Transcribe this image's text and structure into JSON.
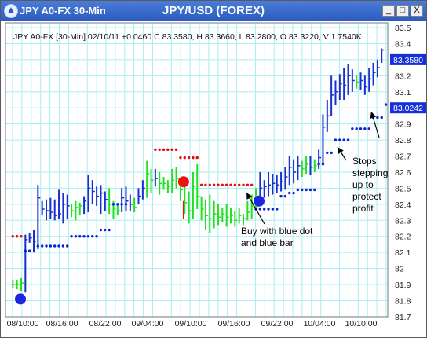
{
  "window": {
    "title": "JPY A0-FX 30-Min",
    "buttons": [
      "_",
      "□",
      "X"
    ]
  },
  "chart_data": {
    "type": "bar",
    "title": "JPY/USD (FOREX)",
    "info_line": "JPY A0-FX [30-Min] 02/10/11 +0.0460 C 83.3580, H 83.3660, L 83.2800, O 83.3220, V 1.7540K",
    "price_axis": [
      "83.5",
      "83.4",
      "83.3",
      "83.2",
      "83.1",
      "83",
      "82.9",
      "82.8",
      "82.7",
      "82.6",
      "82.5",
      "82.4",
      "82.3",
      "82.2",
      "82.1",
      "82",
      "81.9",
      "81.8",
      "81.7"
    ],
    "ylim": [
      81.7,
      83.5
    ],
    "x_labels": [
      "08/10:00",
      "08/16:00",
      "08/22:00",
      "09/04:00",
      "09/10:00",
      "09/16:00",
      "09/22:00",
      "10/04:00",
      "10/10:00"
    ],
    "last_price": "83.3580",
    "stop_price": "83.0242",
    "grid": true,
    "colors": {
      "up_bar": "#1a2fcf",
      "neutral_bar": "#22e022",
      "stop_dot": "#0b25d6",
      "sell_stop_dot": "#e01010",
      "signal_red": "#ee1111",
      "signal_blue": "#1a26e0",
      "grid": "#a8eef2"
    },
    "bars": [
      [
        81.88,
        81.93,
        81.9,
        "g"
      ],
      [
        81.87,
        81.93,
        81.9,
        "g"
      ],
      [
        81.86,
        81.94,
        81.91,
        "g"
      ],
      [
        81.85,
        82.21,
        82.18,
        "b"
      ],
      [
        82.16,
        82.22,
        82.19,
        "b"
      ],
      [
        82.1,
        82.24,
        82.17,
        "b"
      ],
      [
        82.12,
        82.52,
        82.44,
        "b"
      ],
      [
        82.33,
        82.42,
        82.37,
        "b"
      ],
      [
        82.3,
        82.43,
        82.36,
        "b"
      ],
      [
        82.31,
        82.44,
        82.35,
        "b"
      ],
      [
        82.3,
        82.43,
        82.33,
        "b"
      ],
      [
        82.31,
        82.49,
        82.34,
        "b"
      ],
      [
        82.28,
        82.47,
        82.4,
        "b"
      ],
      [
        82.31,
        82.46,
        82.39,
        "b"
      ],
      [
        82.32,
        82.4,
        82.36,
        "g"
      ],
      [
        82.3,
        82.42,
        82.38,
        "g"
      ],
      [
        82.33,
        82.41,
        82.39,
        "g"
      ],
      [
        82.34,
        82.45,
        82.42,
        "b"
      ],
      [
        82.35,
        82.58,
        82.5,
        "b"
      ],
      [
        82.4,
        82.55,
        82.48,
        "b"
      ],
      [
        82.39,
        82.51,
        82.45,
        "b"
      ],
      [
        82.34,
        82.52,
        82.47,
        "b"
      ],
      [
        82.36,
        82.48,
        82.43,
        "b"
      ],
      [
        82.34,
        82.5,
        82.4,
        "g"
      ],
      [
        82.31,
        82.42,
        82.37,
        "g"
      ],
      [
        82.33,
        82.4,
        82.36,
        "g"
      ],
      [
        82.35,
        82.5,
        82.44,
        "b"
      ],
      [
        82.36,
        82.51,
        82.42,
        "b"
      ],
      [
        82.36,
        82.46,
        82.4,
        "b"
      ],
      [
        82.35,
        82.44,
        82.38,
        "g"
      ],
      [
        82.4,
        82.5,
        82.45,
        "b"
      ],
      [
        82.43,
        82.55,
        82.5,
        "b"
      ],
      [
        82.44,
        82.67,
        82.59,
        "g"
      ],
      [
        82.47,
        82.62,
        82.55,
        "g"
      ],
      [
        82.51,
        82.62,
        82.56,
        "b"
      ],
      [
        82.46,
        82.6,
        82.53,
        "g"
      ],
      [
        82.49,
        82.57,
        82.53,
        "g"
      ],
      [
        82.47,
        82.55,
        82.51,
        "g"
      ],
      [
        82.47,
        82.62,
        82.55,
        "g"
      ],
      [
        82.5,
        82.63,
        82.56,
        "g"
      ],
      [
        82.42,
        82.56,
        82.49,
        "g"
      ],
      [
        82.34,
        82.52,
        82.41,
        "g"
      ],
      [
        82.28,
        82.48,
        82.36,
        "g"
      ],
      [
        82.31,
        82.6,
        82.51,
        "g"
      ],
      [
        82.37,
        82.65,
        82.45,
        "g"
      ],
      [
        82.3,
        82.45,
        82.37,
        "g"
      ],
      [
        82.24,
        82.43,
        82.33,
        "g"
      ],
      [
        82.22,
        82.46,
        82.31,
        "g"
      ],
      [
        82.25,
        82.42,
        82.34,
        "g"
      ],
      [
        82.27,
        82.4,
        82.32,
        "g"
      ],
      [
        82.29,
        82.38,
        82.34,
        "g"
      ],
      [
        82.26,
        82.4,
        82.32,
        "g"
      ],
      [
        82.28,
        82.38,
        82.33,
        "g"
      ],
      [
        82.26,
        82.36,
        82.3,
        "g"
      ],
      [
        82.28,
        82.38,
        82.33,
        "g"
      ],
      [
        82.27,
        82.34,
        82.31,
        "g"
      ],
      [
        82.3,
        82.42,
        82.35,
        "g"
      ],
      [
        82.31,
        82.46,
        82.39,
        "g"
      ],
      [
        82.36,
        82.5,
        82.44,
        "g"
      ],
      [
        82.42,
        82.6,
        82.5,
        "b"
      ],
      [
        82.44,
        82.55,
        82.51,
        "b"
      ],
      [
        82.45,
        82.6,
        82.52,
        "b"
      ],
      [
        82.46,
        82.59,
        82.53,
        "b"
      ],
      [
        82.47,
        82.58,
        82.52,
        "b"
      ],
      [
        82.48,
        82.6,
        82.54,
        "b"
      ],
      [
        82.49,
        82.63,
        82.57,
        "b"
      ],
      [
        82.52,
        82.7,
        82.63,
        "b"
      ],
      [
        82.53,
        82.68,
        82.6,
        "b"
      ],
      [
        82.55,
        82.7,
        82.64,
        "b"
      ],
      [
        82.57,
        82.67,
        82.62,
        "g"
      ],
      [
        82.59,
        82.7,
        82.65,
        "g"
      ],
      [
        82.58,
        82.7,
        82.63,
        "b"
      ],
      [
        82.6,
        82.68,
        82.64,
        "g"
      ],
      [
        82.62,
        82.74,
        82.69,
        "b"
      ],
      [
        82.65,
        82.96,
        82.88,
        "b"
      ],
      [
        82.85,
        83.05,
        82.95,
        "b"
      ],
      [
        82.95,
        83.2,
        83.08,
        "b"
      ],
      [
        83.02,
        83.17,
        83.1,
        "b"
      ],
      [
        83.05,
        83.21,
        83.15,
        "b"
      ],
      [
        83.05,
        83.25,
        83.14,
        "b"
      ],
      [
        83.08,
        83.27,
        83.2,
        "b"
      ],
      [
        83.1,
        83.24,
        83.17,
        "b"
      ],
      [
        83.12,
        83.2,
        83.16,
        "g"
      ],
      [
        83.11,
        83.22,
        83.17,
        "b"
      ],
      [
        83.08,
        83.2,
        83.13,
        "b"
      ],
      [
        83.1,
        83.25,
        83.18,
        "b"
      ],
      [
        83.14,
        83.28,
        83.22,
        "b"
      ],
      [
        83.19,
        83.3,
        83.25,
        "b"
      ],
      [
        83.28,
        83.37,
        83.36,
        "b"
      ]
    ],
    "blue_stops": [
      [
        3,
        82.11
      ],
      [
        4,
        82.11
      ],
      [
        6,
        82.14
      ],
      [
        7,
        82.14
      ],
      [
        8,
        82.14
      ],
      [
        9,
        82.14
      ],
      [
        10,
        82.14
      ],
      [
        11,
        82.14
      ],
      [
        12,
        82.14
      ],
      [
        13,
        82.14
      ],
      [
        14,
        82.2
      ],
      [
        15,
        82.2
      ],
      [
        16,
        82.2
      ],
      [
        17,
        82.2
      ],
      [
        18,
        82.2
      ],
      [
        19,
        82.2
      ],
      [
        20,
        82.2
      ],
      [
        21,
        82.24
      ],
      [
        22,
        82.24
      ],
      [
        23,
        82.24
      ],
      [
        24,
        82.4
      ],
      [
        25,
        82.4
      ],
      [
        26,
        82.4
      ],
      [
        27,
        82.4
      ],
      [
        58,
        82.37
      ],
      [
        59,
        82.37
      ],
      [
        60,
        82.37
      ],
      [
        61,
        82.37
      ],
      [
        62,
        82.37
      ],
      [
        63,
        82.37
      ],
      [
        64,
        82.45
      ],
      [
        65,
        82.45
      ],
      [
        66,
        82.47
      ],
      [
        67,
        82.47
      ],
      [
        68,
        82.49
      ],
      [
        69,
        82.49
      ],
      [
        70,
        82.49
      ],
      [
        71,
        82.49
      ],
      [
        72,
        82.49
      ],
      [
        73,
        82.65
      ],
      [
        74,
        82.65
      ],
      [
        75,
        82.72
      ],
      [
        76,
        82.72
      ],
      [
        77,
        82.8
      ],
      [
        78,
        82.8
      ],
      [
        79,
        82.8
      ],
      [
        80,
        82.8
      ],
      [
        81,
        82.87
      ],
      [
        82,
        82.87
      ],
      [
        83,
        82.87
      ],
      [
        84,
        82.87
      ],
      [
        85,
        82.87
      ],
      [
        86,
        82.94
      ],
      [
        87,
        82.94
      ],
      [
        88,
        82.94
      ],
      [
        89,
        83.02
      ]
    ],
    "red_stops": [
      [
        0,
        82.2
      ],
      [
        1,
        82.2
      ],
      [
        2,
        82.2
      ],
      [
        34,
        82.74
      ],
      [
        35,
        82.74
      ],
      [
        36,
        82.74
      ],
      [
        37,
        82.74
      ],
      [
        38,
        82.74
      ],
      [
        39,
        82.74
      ],
      [
        40,
        82.69
      ],
      [
        41,
        82.69
      ],
      [
        42,
        82.69
      ],
      [
        43,
        82.69
      ],
      [
        44,
        82.69
      ],
      [
        45,
        82.52
      ],
      [
        46,
        82.52
      ],
      [
        47,
        82.52
      ],
      [
        48,
        82.52
      ],
      [
        49,
        82.52
      ],
      [
        50,
        82.52
      ],
      [
        51,
        82.52
      ],
      [
        52,
        82.52
      ],
      [
        53,
        82.52
      ],
      [
        54,
        82.52
      ],
      [
        55,
        82.52
      ],
      [
        56,
        82.52
      ],
      [
        57,
        82.52
      ]
    ],
    "signals": [
      {
        "type": "buy",
        "bar": 1,
        "price": 81.81
      },
      {
        "type": "sell",
        "bar": 40,
        "price": 82.54
      },
      {
        "type": "buy",
        "bar": 58,
        "price": 82.42
      }
    ],
    "annotations": [
      {
        "name": "annotation-buy",
        "lines": [
          "Buy with blue dot",
          "and blue bar"
        ]
      },
      {
        "name": "annotation-stops",
        "lines": [
          "Stops",
          "stepping",
          "up to",
          "protect",
          "profit"
        ]
      }
    ]
  }
}
